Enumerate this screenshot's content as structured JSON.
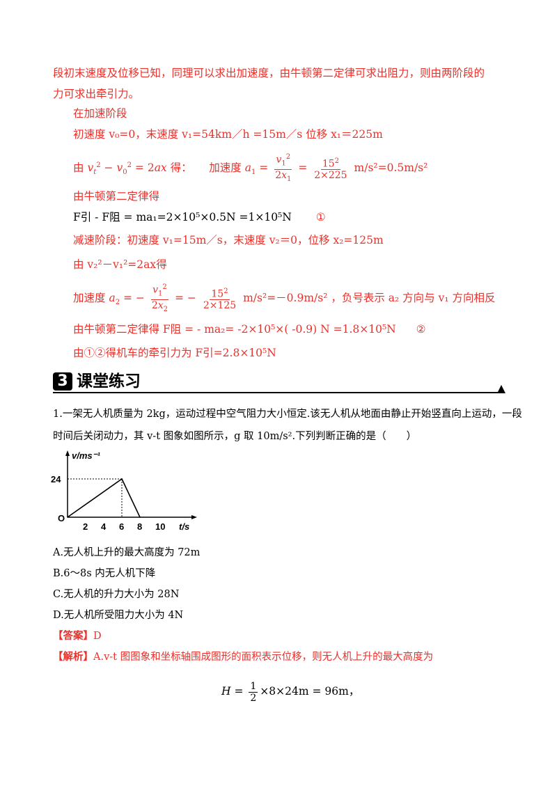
{
  "intro": {
    "line1": "段初末速度及位移已知，同理可以求出加速度，由牛顿第二定律可求出阻力，则由两阶段的",
    "line2": "力可求出牵引力。"
  },
  "accel_stage": {
    "heading": "在加速阶段",
    "initial_text": "初速度 v₀=0，末速度 v₁=54km／h =15m／s   位移 x₁＝225m",
    "formula_prefix": "由",
    "formula_suffix": "得：",
    "accel_label": "加速度",
    "result": "m/s²=0.5m/s²"
  },
  "newton1": {
    "heading": "由牛顿第二定律得",
    "equation": "F引 - F阻 = ma₁=2×10⁵×0.5N =1×10⁵N",
    "marker": "①"
  },
  "decel_stage": {
    "text": "减速阶段：初速度 v₁=15m／s，末速度 v₂＝0，位移 x₂=125m",
    "formula_line": "由 v₂²－v₁²=2ax得",
    "accel_label": "加速度",
    "result": "m/s²=－0.9m/s²",
    "note": "，负号表示 a₂ 方向与 v₁ 方向相反"
  },
  "newton2": {
    "equation": "由牛顿第二定律得 F阻 = - ma₂= -2×10⁵×( -0.9) N =1.8×10⁵N",
    "marker": "②"
  },
  "conclusion": "由①②得机车的牵引力为 F引=2.8×10⁵N",
  "section": {
    "number": "3",
    "title": "课堂练习"
  },
  "question": {
    "line1": "1.一架无人机质量为 2kg，运动过程中空气阻力大小恒定.该无人机从地面由静止开始竖直向上运动，一段",
    "line2": "时间后关闭动力，其 v-t 图象如图所示，g 取 10m/s².下列判断正确的是（　　）",
    "options": [
      "A.无人机上升的最大高度为 72m",
      "B.6～8s 内无人机下降",
      "C.无人机的升力大小为 28N",
      "D.无人机所受阻力大小为 4N"
    ]
  },
  "answer": {
    "tag": "【答案】",
    "value": "D"
  },
  "analysis": {
    "tag": "【解析】",
    "text": "A.v-t 图图象和坐标轴围成图形的面积表示位移，则无人机上升的最大高度为",
    "formula_left": "H =",
    "formula_right": "×8×24m = 96m，"
  },
  "chart_data": {
    "type": "line",
    "x": [
      0,
      6,
      8
    ],
    "y": [
      0,
      24,
      0
    ],
    "xlabel": "t/s",
    "ylabel": "v/ms⁻¹",
    "xticks": [
      "2",
      "4",
      "6",
      "8",
      "10"
    ],
    "yticks": [
      "24"
    ],
    "origin_label": "O",
    "xlim": [
      0,
      11
    ],
    "ylim": [
      0,
      30
    ]
  }
}
